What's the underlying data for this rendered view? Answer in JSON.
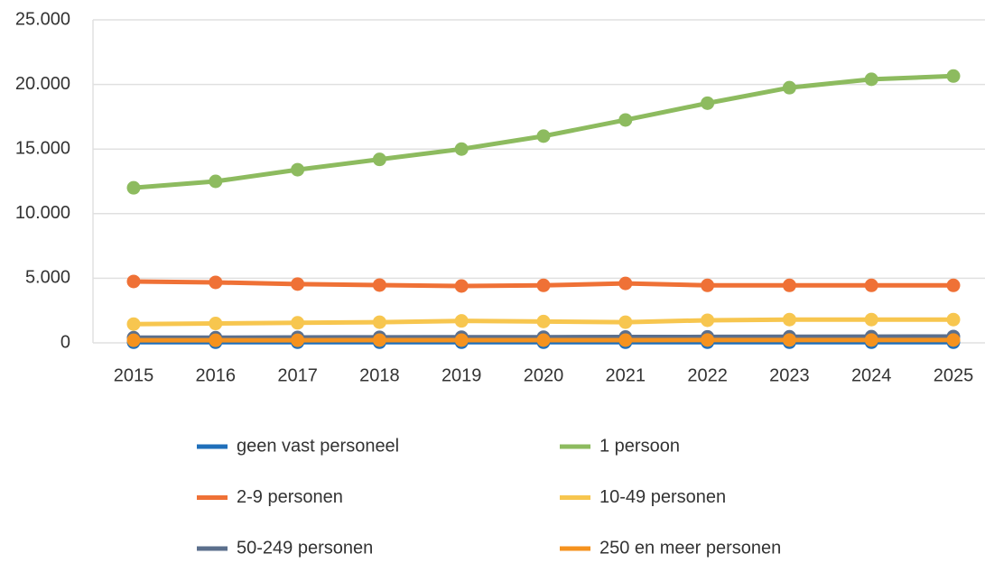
{
  "chart_data": {
    "type": "line",
    "x": [
      "2015",
      "2016",
      "2017",
      "2018",
      "2019",
      "2020",
      "2021",
      "2022",
      "2023",
      "2024",
      "2025"
    ],
    "series": [
      {
        "name": "geen vast personeel",
        "color": "#1f6fba",
        "values": [
          50,
          50,
          50,
          50,
          50,
          50,
          50,
          50,
          50,
          50,
          50
        ]
      },
      {
        "name": "1 persoon",
        "color": "#8dbb5f",
        "values": [
          12000,
          12500,
          13400,
          14200,
          15000,
          16000,
          17250,
          18550,
          19750,
          20400,
          20650
        ]
      },
      {
        "name": "2-9 personen",
        "color": "#ef7136",
        "values": [
          4750,
          4680,
          4550,
          4470,
          4400,
          4450,
          4600,
          4450,
          4450,
          4450,
          4450
        ]
      },
      {
        "name": "10-49 personen",
        "color": "#f7c64f",
        "values": [
          1450,
          1500,
          1550,
          1600,
          1700,
          1650,
          1600,
          1750,
          1800,
          1800,
          1800
        ]
      },
      {
        "name": "50-249 personen",
        "color": "#5b6f8c",
        "values": [
          400,
          400,
          420,
          430,
          440,
          440,
          450,
          460,
          470,
          480,
          490
        ]
      },
      {
        "name": "250 en meer personen",
        "color": "#f5921e",
        "values": [
          200,
          200,
          200,
          210,
          210,
          210,
          210,
          220,
          220,
          220,
          220
        ]
      }
    ],
    "ylim": [
      0,
      25000
    ],
    "yticks": [
      0,
      {
        "value": 5000,
        "label": "5.000"
      },
      {
        "value": 10000,
        "label": "10.000"
      },
      {
        "value": 15000,
        "label": "15.000"
      },
      {
        "value": 20000,
        "label": "20.000"
      },
      {
        "value": 25000,
        "label": "25.000"
      }
    ],
    "grid": true
  }
}
